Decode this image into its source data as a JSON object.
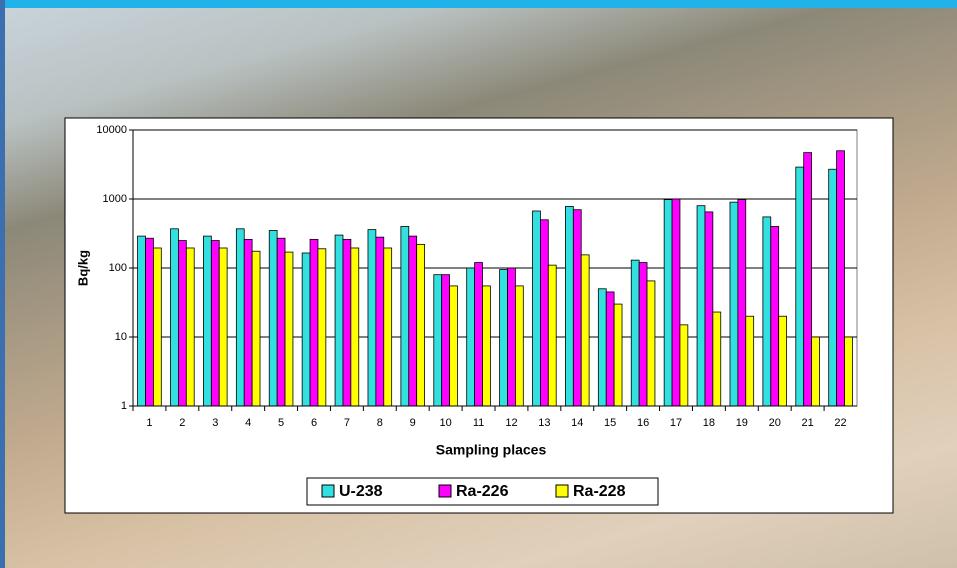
{
  "chart_data": {
    "type": "bar",
    "y_label": "Bq/kg",
    "x_label": "Sampling places",
    "categories": [
      "1",
      "2",
      "3",
      "4",
      "5",
      "6",
      "7",
      "8",
      "9",
      "10",
      "11",
      "12",
      "13",
      "14",
      "15",
      "16",
      "17",
      "18",
      "19",
      "20",
      "21",
      "22"
    ],
    "series": [
      {
        "name": "U-238",
        "color": "#33e0e0",
        "values": [
          290,
          370,
          290,
          370,
          350,
          165,
          300,
          360,
          400,
          80,
          100,
          95,
          670,
          780,
          50,
          130,
          980,
          800,
          900,
          550,
          2900,
          2700
        ]
      },
      {
        "name": "Ra-226",
        "color": "#ff00ff",
        "values": [
          270,
          250,
          250,
          260,
          270,
          260,
          260,
          280,
          290,
          80,
          120,
          100,
          500,
          700,
          45,
          120,
          1000,
          650,
          980,
          400,
          4700,
          5000
        ]
      },
      {
        "name": "Ra-228",
        "color": "#ffff00",
        "values": [
          195,
          195,
          195,
          175,
          170,
          190,
          195,
          195,
          220,
          55,
          55,
          55,
          110,
          155,
          30,
          65,
          15,
          23,
          20,
          20,
          10,
          10
        ]
      }
    ],
    "ylim": [
      1,
      10000
    ],
    "yticks": [
      1,
      10,
      100,
      1000,
      10000
    ],
    "log_scale": true,
    "grid": true
  }
}
